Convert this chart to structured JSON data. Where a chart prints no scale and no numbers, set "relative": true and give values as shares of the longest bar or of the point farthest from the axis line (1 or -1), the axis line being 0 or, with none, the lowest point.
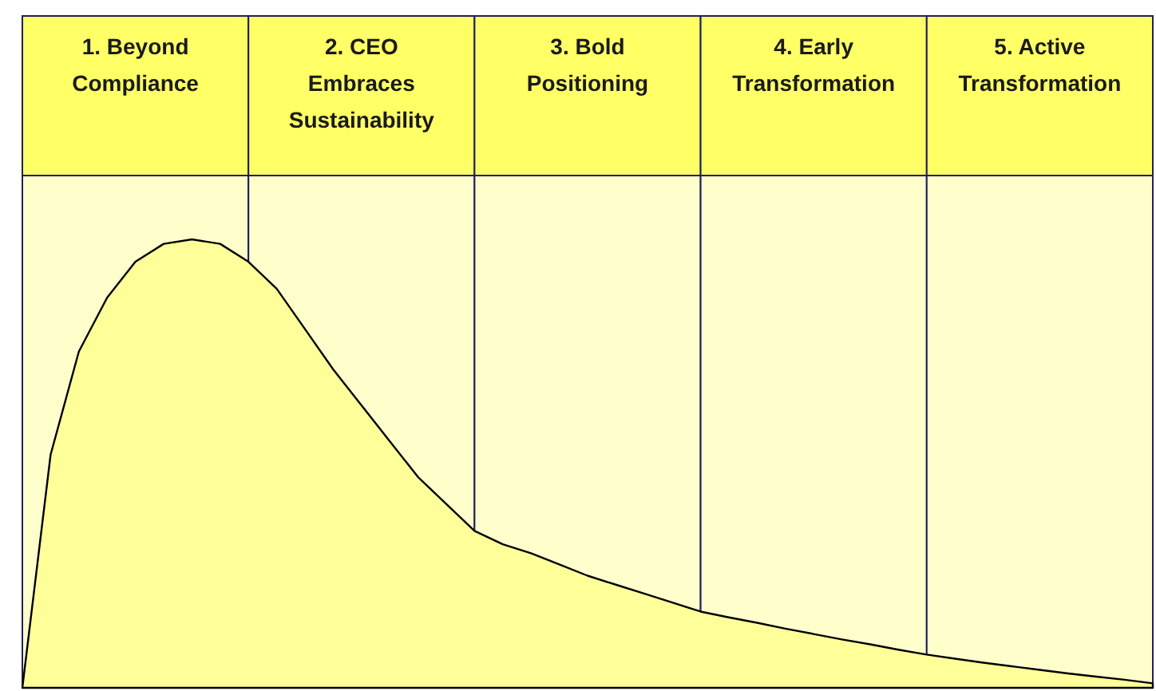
{
  "chart_data": {
    "type": "area",
    "relative": true,
    "categories": [
      null,
      null,
      null,
      null,
      null,
      null,
      null,
      null,
      null,
      null,
      null,
      null,
      null,
      null,
      null,
      null,
      null,
      null,
      null,
      null,
      null,
      null,
      null,
      null,
      null,
      null,
      null,
      null,
      null,
      null,
      null,
      null,
      null,
      null,
      null,
      null,
      null,
      null,
      null,
      null,
      null
    ],
    "series": [
      {
        "color": "#ffff99",
        "values": [
          0,
          0.52,
          0.75,
          0.87,
          0.95,
          0.99,
          1.0,
          0.99,
          0.95,
          0.89,
          0.8,
          0.71,
          0.63,
          0.55,
          0.47,
          0.41,
          0.35,
          0.32,
          0.3,
          0.275,
          0.25,
          0.23,
          0.21,
          0.19,
          0.17,
          0.157,
          0.145,
          0.132,
          0.12,
          0.108,
          0.097,
          0.085,
          0.074,
          0.065,
          0.056,
          0.048,
          0.04,
          0.032,
          0.025,
          0.018,
          0.01
        ]
      }
    ],
    "annotations": [
      "1. Beyond Compliance",
      "2. CEO Embraces Sustainability",
      "3. Bold Positioning",
      "4. Early Transformation",
      "5. Active Transformation"
    ]
  }
}
